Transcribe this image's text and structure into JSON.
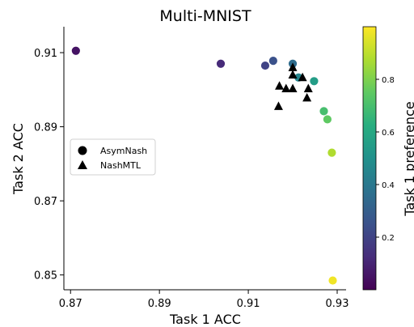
{
  "chart_data": {
    "type": "scatter",
    "title": "Multi-MNIST",
    "xlabel": "Task 1 ACC",
    "ylabel": "Task 2 ACC",
    "xlim": [
      0.8685,
      0.932
    ],
    "ylim": [
      0.846,
      0.917
    ],
    "xticks": [
      0.87,
      0.89,
      0.91,
      0.93
    ],
    "xtick_labels": [
      "0.87",
      "0.89",
      "0.91",
      "0.93"
    ],
    "yticks": [
      0.85,
      0.87,
      0.89,
      0.91
    ],
    "ytick_labels": [
      "0.85",
      "0.87",
      "0.89",
      "0.91"
    ],
    "grid": false,
    "legend": {
      "position": "center-left",
      "entries": [
        {
          "label": "AsymNash",
          "marker": "circle"
        },
        {
          "label": "NashMTL",
          "marker": "triangle"
        }
      ]
    },
    "colorbar": {
      "label": "Task 1 preference",
      "colormap": "viridis",
      "range": [
        0.0,
        1.0
      ],
      "ticks": [
        0.2,
        0.4,
        0.6,
        0.8
      ],
      "tick_labels": [
        "0.2",
        "0.4",
        "0.6",
        "0.8"
      ]
    },
    "series": [
      {
        "name": "AsymNash",
        "marker": "circle",
        "points": [
          {
            "x": 0.8712,
            "y": 0.9105,
            "c": 0.05
          },
          {
            "x": 0.9038,
            "y": 0.907,
            "c": 0.12
          },
          {
            "x": 0.9138,
            "y": 0.9065,
            "c": 0.2
          },
          {
            "x": 0.9156,
            "y": 0.9078,
            "c": 0.25
          },
          {
            "x": 0.92,
            "y": 0.907,
            "c": 0.35
          },
          {
            "x": 0.9213,
            "y": 0.9033,
            "c": 0.45
          },
          {
            "x": 0.9248,
            "y": 0.9023,
            "c": 0.55
          },
          {
            "x": 0.927,
            "y": 0.8942,
            "c": 0.7
          },
          {
            "x": 0.9278,
            "y": 0.892,
            "c": 0.75
          },
          {
            "x": 0.9288,
            "y": 0.883,
            "c": 0.88
          },
          {
            "x": 0.929,
            "y": 0.8485,
            "c": 0.98
          }
        ]
      },
      {
        "name": "NashMTL",
        "marker": "triangle",
        "color": "#000000",
        "points": [
          {
            "x": 0.92,
            "y": 0.906
          },
          {
            "x": 0.92,
            "y": 0.904
          },
          {
            "x": 0.9222,
            "y": 0.9033
          },
          {
            "x": 0.917,
            "y": 0.901
          },
          {
            "x": 0.9185,
            "y": 0.9003
          },
          {
            "x": 0.92,
            "y": 0.9003
          },
          {
            "x": 0.9235,
            "y": 0.9003
          },
          {
            "x": 0.9232,
            "y": 0.8978
          },
          {
            "x": 0.9168,
            "y": 0.8955
          }
        ]
      }
    ]
  }
}
